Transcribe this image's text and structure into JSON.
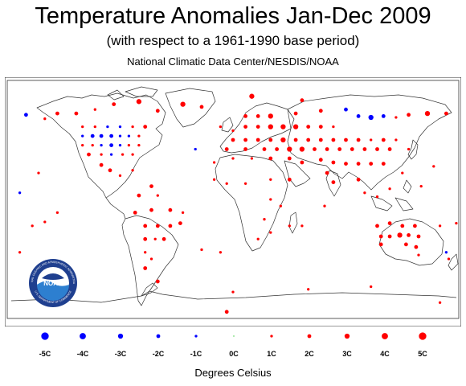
{
  "header": {
    "title": "Temperature Anomalies Jan-Dec 2009",
    "subtitle": "(with respect to a 1961-1990 base period)",
    "credit": "National Climatic Data Center/NESDIS/NOAA"
  },
  "logo": {
    "name": "NOAA",
    "ring_text": "NATIONAL OCEANIC AND ATMOSPHERIC ADMINISTRATION",
    "ring_text_bottom": "U.S. DEPARTMENT OF COMMERCE"
  },
  "legend": {
    "units": "Degrees Celsius",
    "items": [
      {
        "label": "-5C",
        "value": -5,
        "color": "#0000ff"
      },
      {
        "label": "-4C",
        "value": -4,
        "color": "#0000ff"
      },
      {
        "label": "-3C",
        "value": -3,
        "color": "#0000ff"
      },
      {
        "label": "-2C",
        "value": -2,
        "color": "#0000ff"
      },
      {
        "label": "-1C",
        "value": -1,
        "color": "#0000ff"
      },
      {
        "label": "0C",
        "value": 0,
        "color": "#33cc33"
      },
      {
        "label": "1C",
        "value": 1,
        "color": "#ff0000"
      },
      {
        "label": "2C",
        "value": 2,
        "color": "#ff0000"
      },
      {
        "label": "3C",
        "value": 3,
        "color": "#ff0000"
      },
      {
        "label": "4C",
        "value": 4,
        "color": "#ff0000"
      },
      {
        "label": "5C",
        "value": 5,
        "color": "#ff0000"
      }
    ]
  },
  "colors": {
    "warm": "#ff0000",
    "cool": "#0000ff",
    "neutral": "#33cc33",
    "coastline": "#333333",
    "noaa_blue": "#1f3f8f"
  },
  "map_data": {
    "projection": "equirectangular",
    "lon_range": [
      -180,
      180
    ],
    "lat_range": [
      -90,
      90
    ],
    "anomalies": [
      {
        "lon": -140,
        "lat": 65,
        "value": 2
      },
      {
        "lon": -150,
        "lat": 61,
        "value": 1
      },
      {
        "lon": -165,
        "lat": 64,
        "value": -2
      },
      {
        "lon": -125,
        "lat": 65,
        "value": 2
      },
      {
        "lon": -110,
        "lat": 68,
        "value": 1
      },
      {
        "lon": -95,
        "lat": 72,
        "value": 2
      },
      {
        "lon": -75,
        "lat": 74,
        "value": 3
      },
      {
        "lon": -60,
        "lat": 67,
        "value": 2
      },
      {
        "lon": -40,
        "lat": 72,
        "value": 3
      },
      {
        "lon": -25,
        "lat": 70,
        "value": 2
      },
      {
        "lon": -120,
        "lat": 55,
        "value": 1
      },
      {
        "lon": -110,
        "lat": 55,
        "value": 1
      },
      {
        "lon": -100,
        "lat": 55,
        "value": -1
      },
      {
        "lon": -90,
        "lat": 55,
        "value": -1
      },
      {
        "lon": -80,
        "lat": 55,
        "value": 1
      },
      {
        "lon": -70,
        "lat": 55,
        "value": 2
      },
      {
        "lon": -120,
        "lat": 48,
        "value": -1
      },
      {
        "lon": -112,
        "lat": 48,
        "value": -2
      },
      {
        "lon": -105,
        "lat": 48,
        "value": -2
      },
      {
        "lon": -97,
        "lat": 48,
        "value": -2
      },
      {
        "lon": -90,
        "lat": 48,
        "value": -1
      },
      {
        "lon": -83,
        "lat": 48,
        "value": -1
      },
      {
        "lon": -75,
        "lat": 48,
        "value": 1
      },
      {
        "lon": -120,
        "lat": 41,
        "value": 1
      },
      {
        "lon": -112,
        "lat": 41,
        "value": 1
      },
      {
        "lon": -105,
        "lat": 41,
        "value": -1
      },
      {
        "lon": -97,
        "lat": 41,
        "value": -2
      },
      {
        "lon": -90,
        "lat": 41,
        "value": -1
      },
      {
        "lon": -83,
        "lat": 41,
        "value": 1
      },
      {
        "lon": -75,
        "lat": 41,
        "value": 1
      },
      {
        "lon": -115,
        "lat": 34,
        "value": 2
      },
      {
        "lon": -105,
        "lat": 34,
        "value": 1
      },
      {
        "lon": -97,
        "lat": 34,
        "value": -1
      },
      {
        "lon": -88,
        "lat": 34,
        "value": 1
      },
      {
        "lon": -80,
        "lat": 34,
        "value": 1
      },
      {
        "lon": -105,
        "lat": 26,
        "value": 2
      },
      {
        "lon": -98,
        "lat": 22,
        "value": 2
      },
      {
        "lon": -90,
        "lat": 18,
        "value": 1
      },
      {
        "lon": -80,
        "lat": 22,
        "value": 1
      },
      {
        "lon": -155,
        "lat": 20,
        "value": 1
      },
      {
        "lon": -170,
        "lat": 5,
        "value": -1
      },
      {
        "lon": -65,
        "lat": 10,
        "value": 2
      },
      {
        "lon": -75,
        "lat": 3,
        "value": 2
      },
      {
        "lon": -60,
        "lat": 3,
        "value": 1
      },
      {
        "lon": -78,
        "lat": -10,
        "value": 2
      },
      {
        "lon": -65,
        "lat": -8,
        "value": 2
      },
      {
        "lon": -50,
        "lat": -8,
        "value": 2
      },
      {
        "lon": -40,
        "lat": -10,
        "value": 1
      },
      {
        "lon": -70,
        "lat": -20,
        "value": 2
      },
      {
        "lon": -60,
        "lat": -20,
        "value": 2
      },
      {
        "lon": -50,
        "lat": -20,
        "value": 2
      },
      {
        "lon": -42,
        "lat": -18,
        "value": 2
      },
      {
        "lon": -70,
        "lat": -30,
        "value": 2
      },
      {
        "lon": -62,
        "lat": -30,
        "value": 1
      },
      {
        "lon": -55,
        "lat": -30,
        "value": 2
      },
      {
        "lon": -70,
        "lat": -40,
        "value": 1
      },
      {
        "lon": -65,
        "lat": -45,
        "value": 1
      },
      {
        "lon": -70,
        "lat": -52,
        "value": 2
      },
      {
        "lon": -60,
        "lat": -62,
        "value": 2
      },
      {
        "lon": -140,
        "lat": -10,
        "value": 1
      },
      {
        "lon": -150,
        "lat": -17,
        "value": 1
      },
      {
        "lon": -160,
        "lat": -20,
        "value": 1
      },
      {
        "lon": -10,
        "lat": 55,
        "value": 1
      },
      {
        "lon": 0,
        "lat": 52,
        "value": 1
      },
      {
        "lon": 10,
        "lat": 55,
        "value": 2
      },
      {
        "lon": 20,
        "lat": 55,
        "value": 2
      },
      {
        "lon": 30,
        "lat": 55,
        "value": 3
      },
      {
        "lon": 40,
        "lat": 55,
        "value": 3
      },
      {
        "lon": 50,
        "lat": 55,
        "value": 3
      },
      {
        "lon": 60,
        "lat": 55,
        "value": 2
      },
      {
        "lon": 70,
        "lat": 55,
        "value": 2
      },
      {
        "lon": 80,
        "lat": 55,
        "value": 1
      },
      {
        "lon": 10,
        "lat": 63,
        "value": 2
      },
      {
        "lon": 20,
        "lat": 63,
        "value": 2
      },
      {
        "lon": 30,
        "lat": 63,
        "value": 3
      },
      {
        "lon": 50,
        "lat": 65,
        "value": 2
      },
      {
        "lon": 70,
        "lat": 67,
        "value": 2
      },
      {
        "lon": 90,
        "lat": 68,
        "value": -2
      },
      {
        "lon": 100,
        "lat": 63,
        "value": -2
      },
      {
        "lon": 110,
        "lat": 62,
        "value": -3
      },
      {
        "lon": 120,
        "lat": 63,
        "value": -2
      },
      {
        "lon": 130,
        "lat": 62,
        "value": 1
      },
      {
        "lon": 140,
        "lat": 64,
        "value": 2
      },
      {
        "lon": 155,
        "lat": 65,
        "value": 3
      },
      {
        "lon": 170,
        "lat": 65,
        "value": 2
      },
      {
        "lon": 15,
        "lat": 78,
        "value": 3
      },
      {
        "lon": 55,
        "lat": 75,
        "value": 2
      },
      {
        "lon": 0,
        "lat": 45,
        "value": 2
      },
      {
        "lon": 10,
        "lat": 45,
        "value": 2
      },
      {
        "lon": 20,
        "lat": 45,
        "value": 2
      },
      {
        "lon": 30,
        "lat": 45,
        "value": 2
      },
      {
        "lon": 40,
        "lat": 45,
        "value": 3
      },
      {
        "lon": 50,
        "lat": 45,
        "value": 2
      },
      {
        "lon": 60,
        "lat": 45,
        "value": 2
      },
      {
        "lon": 70,
        "lat": 45,
        "value": 2
      },
      {
        "lon": 80,
        "lat": 45,
        "value": 2
      },
      {
        "lon": 90,
        "lat": 45,
        "value": 2
      },
      {
        "lon": 100,
        "lat": 45,
        "value": 2
      },
      {
        "lon": 110,
        "lat": 45,
        "value": 1
      },
      {
        "lon": 120,
        "lat": 45,
        "value": 2
      },
      {
        "lon": 130,
        "lat": 45,
        "value": 1
      },
      {
        "lon": -5,
        "lat": 38,
        "value": 2
      },
      {
        "lon": 10,
        "lat": 38,
        "value": 2
      },
      {
        "lon": 25,
        "lat": 38,
        "value": 2
      },
      {
        "lon": 35,
        "lat": 38,
        "value": 2
      },
      {
        "lon": 45,
        "lat": 38,
        "value": 3
      },
      {
        "lon": 55,
        "lat": 38,
        "value": 3
      },
      {
        "lon": 65,
        "lat": 38,
        "value": 2
      },
      {
        "lon": 75,
        "lat": 38,
        "value": 2
      },
      {
        "lon": 85,
        "lat": 38,
        "value": 2
      },
      {
        "lon": 95,
        "lat": 38,
        "value": 2
      },
      {
        "lon": 105,
        "lat": 38,
        "value": 2
      },
      {
        "lon": 115,
        "lat": 38,
        "value": 2
      },
      {
        "lon": 125,
        "lat": 38,
        "value": 2
      },
      {
        "lon": 140,
        "lat": 38,
        "value": 1
      },
      {
        "lon": 0,
        "lat": 31,
        "value": 1
      },
      {
        "lon": 15,
        "lat": 31,
        "value": 1
      },
      {
        "lon": 30,
        "lat": 31,
        "value": 2
      },
      {
        "lon": 45,
        "lat": 31,
        "value": 2
      },
      {
        "lon": 55,
        "lat": 28,
        "value": 2
      },
      {
        "lon": 70,
        "lat": 30,
        "value": 2
      },
      {
        "lon": 80,
        "lat": 28,
        "value": 2
      },
      {
        "lon": 90,
        "lat": 27,
        "value": 2
      },
      {
        "lon": 100,
        "lat": 27,
        "value": 2
      },
      {
        "lon": 110,
        "lat": 27,
        "value": 2
      },
      {
        "lon": 120,
        "lat": 27,
        "value": 2
      },
      {
        "lon": -15,
        "lat": 15,
        "value": 1
      },
      {
        "lon": -5,
        "lat": 12,
        "value": 1
      },
      {
        "lon": 10,
        "lat": 12,
        "value": 1
      },
      {
        "lon": 30,
        "lat": 15,
        "value": 1
      },
      {
        "lon": 45,
        "lat": 15,
        "value": 2
      },
      {
        "lon": 75,
        "lat": 20,
        "value": 2
      },
      {
        "lon": 80,
        "lat": 13,
        "value": 2
      },
      {
        "lon": 100,
        "lat": 15,
        "value": 2
      },
      {
        "lon": 105,
        "lat": 5,
        "value": 1
      },
      {
        "lon": 115,
        "lat": 2,
        "value": 1
      },
      {
        "lon": 125,
        "lat": 8,
        "value": 1
      },
      {
        "lon": 135,
        "lat": 20,
        "value": 1
      },
      {
        "lon": 150,
        "lat": 10,
        "value": 1
      },
      {
        "lon": 160,
        "lat": 25,
        "value": 1
      },
      {
        "lon": 30,
        "lat": 0,
        "value": 1
      },
      {
        "lon": 38,
        "lat": -5,
        "value": 1
      },
      {
        "lon": 25,
        "lat": -15,
        "value": 1
      },
      {
        "lon": 30,
        "lat": -25,
        "value": 1
      },
      {
        "lon": 20,
        "lat": -30,
        "value": 1
      },
      {
        "lon": 45,
        "lat": -20,
        "value": 1
      },
      {
        "lon": 55,
        "lat": -20,
        "value": 1
      },
      {
        "lon": 73,
        "lat": -5,
        "value": 1
      },
      {
        "lon": 115,
        "lat": -20,
        "value": 2
      },
      {
        "lon": 125,
        "lat": -18,
        "value": 2
      },
      {
        "lon": 135,
        "lat": -20,
        "value": 2
      },
      {
        "lon": 145,
        "lat": -20,
        "value": 2
      },
      {
        "lon": 118,
        "lat": -28,
        "value": 2
      },
      {
        "lon": 125,
        "lat": -28,
        "value": 2
      },
      {
        "lon": 133,
        "lat": -27,
        "value": 3
      },
      {
        "lon": 140,
        "lat": -27,
        "value": 2
      },
      {
        "lon": 148,
        "lat": -28,
        "value": 2
      },
      {
        "lon": 118,
        "lat": -34,
        "value": 2
      },
      {
        "lon": 138,
        "lat": -34,
        "value": 2
      },
      {
        "lon": 146,
        "lat": -36,
        "value": 2
      },
      {
        "lon": 148,
        "lat": -42,
        "value": 1
      },
      {
        "lon": 170,
        "lat": -40,
        "value": -1
      },
      {
        "lon": 172,
        "lat": -45,
        "value": 1
      },
      {
        "lon": 165,
        "lat": -20,
        "value": 1
      },
      {
        "lon": 178,
        "lat": -18,
        "value": 1
      },
      {
        "lon": -170,
        "lat": -40,
        "value": 1
      },
      {
        "lon": 0,
        "lat": -70,
        "value": 1
      },
      {
        "lon": 60,
        "lat": -68,
        "value": 1
      },
      {
        "lon": 110,
        "lat": -66,
        "value": 1
      },
      {
        "lon": 165,
        "lat": -78,
        "value": 1
      },
      {
        "lon": -25,
        "lat": -38,
        "value": 1
      },
      {
        "lon": -10,
        "lat": -40,
        "value": 1
      },
      {
        "lon": -5,
        "lat": -85,
        "value": 2
      },
      {
        "lon": -30,
        "lat": 38,
        "value": -1
      },
      {
        "lon": -15,
        "lat": 28,
        "value": 1
      }
    ]
  }
}
